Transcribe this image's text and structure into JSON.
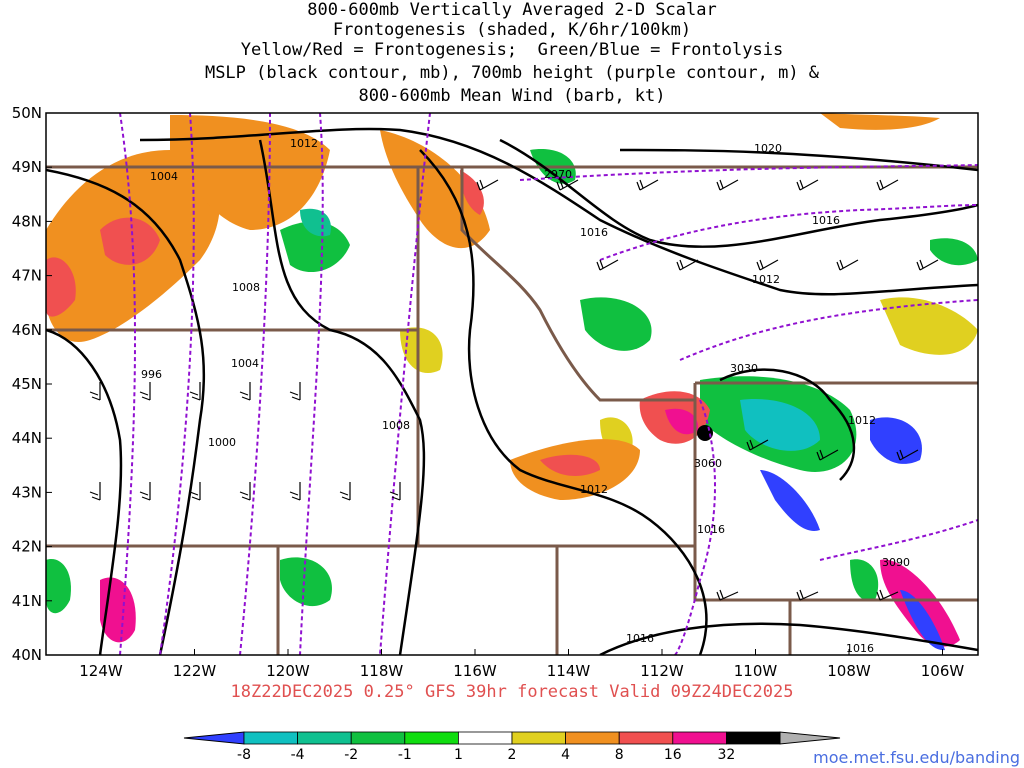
{
  "title_lines": [
    "800-600mb Vertically Averaged 2-D Scalar",
    "Frontogenesis (shaded, K/6hr/100km)",
    "Yellow/Red = Frontogenesis;  Green/Blue = Frontolysis",
    "MSLP (black contour, mb), 700mb height (purple contour, m) &",
    "800-600mb Mean Wind (barb, kt)"
  ],
  "lat_labels": [
    "50N",
    "49N",
    "48N",
    "47N",
    "46N",
    "45N",
    "44N",
    "43N",
    "42N",
    "41N",
    "40N"
  ],
  "lon_labels": [
    "124W",
    "122W",
    "120W",
    "118W",
    "116W",
    "114W",
    "112W",
    "110W",
    "108W",
    "106W"
  ],
  "mslp_labels": [
    "1012",
    "1004",
    "1008",
    "1004",
    "996",
    "1000",
    "1008",
    "1012",
    "1016",
    "1020",
    "1016",
    "1012",
    "1016",
    "1012",
    "1016",
    "1016"
  ],
  "height_labels": [
    "2970",
    "3030",
    "3060",
    "3090"
  ],
  "valid_text": "18Z22DEC2025 0.25° GFS 39hr forecast Valid 09Z24DEC2025",
  "colorbar": {
    "labels": [
      "-8",
      "-4",
      "-2",
      "-1",
      "1",
      "2",
      "4",
      "8",
      "16",
      "32"
    ],
    "colors": [
      "#3040ff",
      "#10c0c0",
      "#10c090",
      "#10c040",
      "#10dd10",
      "#ffffff",
      "#e0d020",
      "#f09020",
      "#f05050",
      "#f01090",
      "#000000",
      "#b0b0b0"
    ]
  },
  "credit": "moe.met.fsu.edu/banding",
  "colors": {
    "mslp": "#000000",
    "height": "#9010d0",
    "border": "#7a5a4a",
    "valid_text": "#e05050"
  }
}
